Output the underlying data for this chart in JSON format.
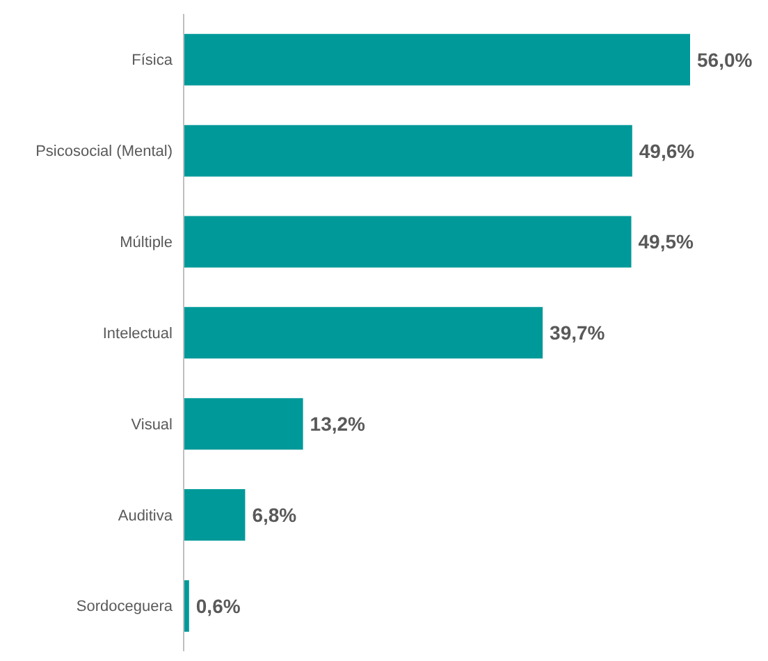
{
  "chart_data": {
    "type": "bar",
    "orientation": "horizontal",
    "categories": [
      "Física",
      "Psicosocial (Mental)",
      "Múltiple",
      "Intelectual",
      "Visual",
      "Auditiva",
      "Sordoceguera"
    ],
    "values": [
      56.0,
      49.6,
      49.5,
      39.7,
      13.2,
      6.8,
      0.6
    ],
    "value_labels": [
      "56,0%",
      "49,6%",
      "49,5%",
      "39,7%",
      "13,2%",
      "6,8%",
      "0,6%"
    ],
    "color": "#009999"
  }
}
